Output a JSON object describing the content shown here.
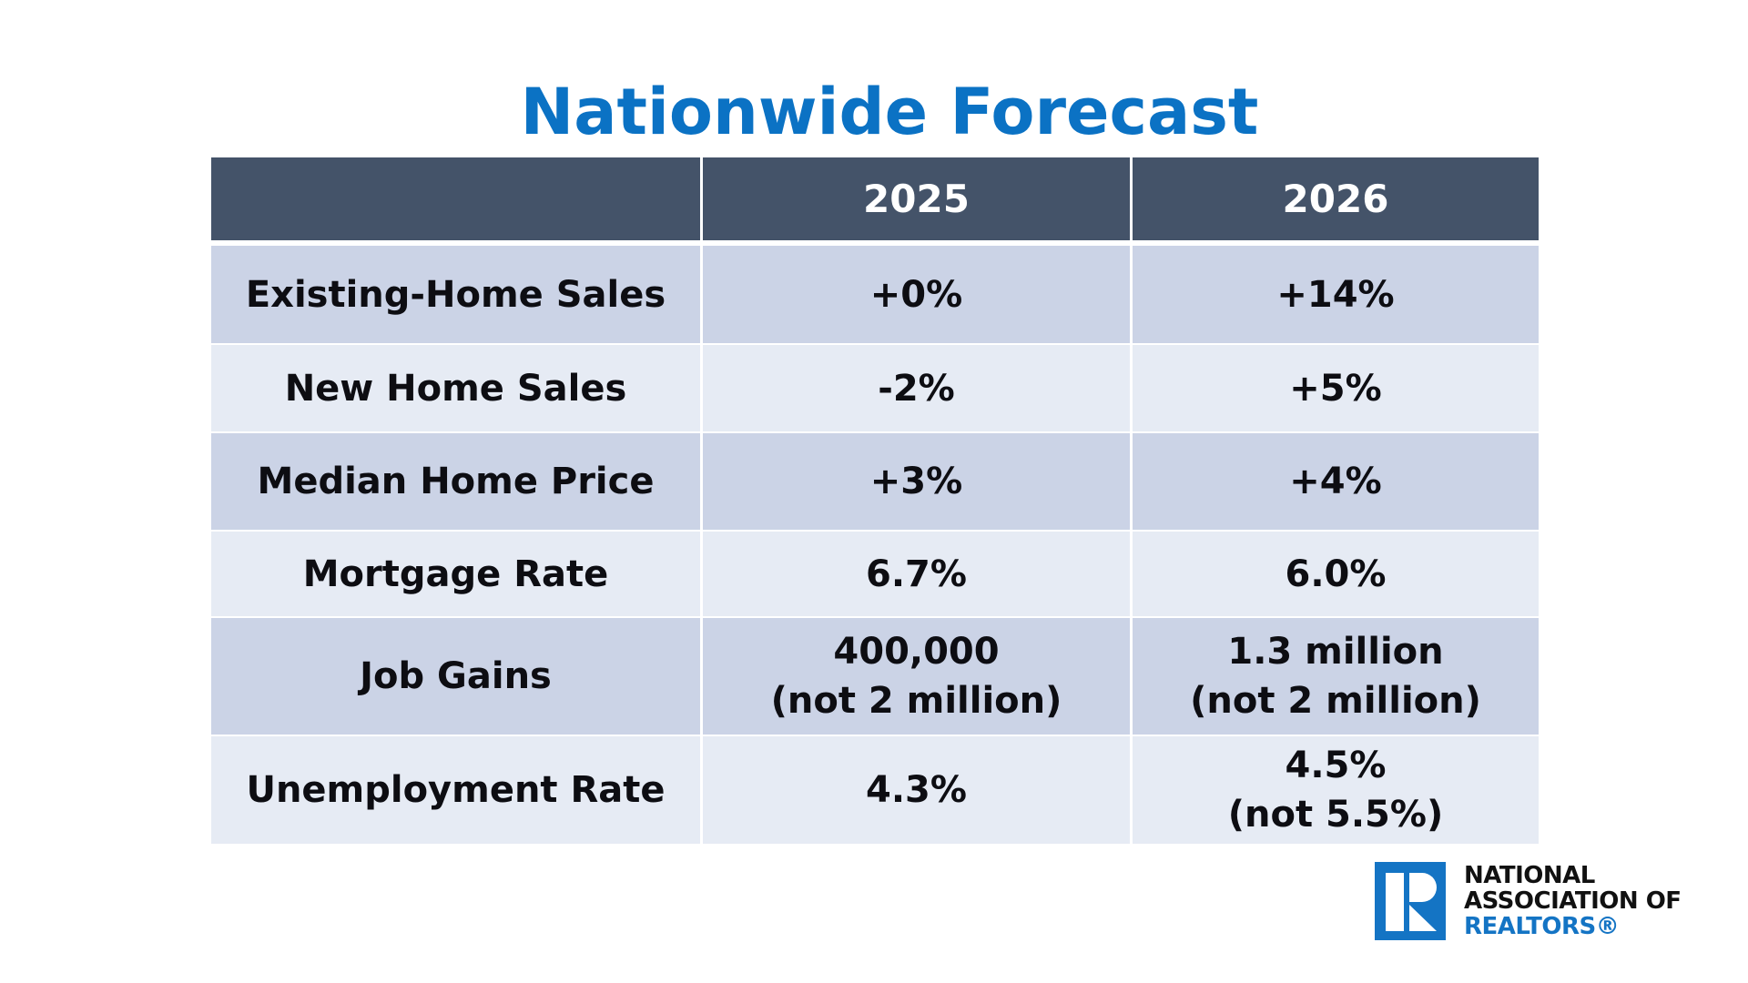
{
  "title": "Nationwide Forecast",
  "table": {
    "headers": [
      "",
      "2025",
      "2026"
    ],
    "rows": [
      {
        "label": "Existing-Home Sales",
        "y2025": [
          "+0%"
        ],
        "y2026": [
          "+14%"
        ]
      },
      {
        "label": "New Home Sales",
        "y2025": [
          "-2%"
        ],
        "y2026": [
          "+5%"
        ]
      },
      {
        "label": "Median Home Price",
        "y2025": [
          "+3%"
        ],
        "y2026": [
          "+4%"
        ]
      },
      {
        "label": "Mortgage Rate",
        "y2025": [
          "6.7%"
        ],
        "y2026": [
          "6.0%"
        ]
      },
      {
        "label": "Job Gains",
        "y2025": [
          "400,000",
          "(not 2 million)"
        ],
        "y2026": [
          "1.3 million",
          "(not 2 million)"
        ]
      },
      {
        "label": "Unemployment Rate",
        "y2025": [
          "4.3%"
        ],
        "y2026": [
          "4.5%",
          "(not 5.5%)"
        ]
      }
    ]
  },
  "logo": {
    "icon": "realtor-r-icon",
    "line1": "NATIONAL",
    "line2": "ASSOCIATION OF",
    "line3": "REALTORS®"
  },
  "colors": {
    "title": "#0b72c4",
    "header_bg": "#445369",
    "row_dark": "#cbd3e6",
    "row_light": "#e6ebf4",
    "brand_blue": "#1474c4"
  }
}
